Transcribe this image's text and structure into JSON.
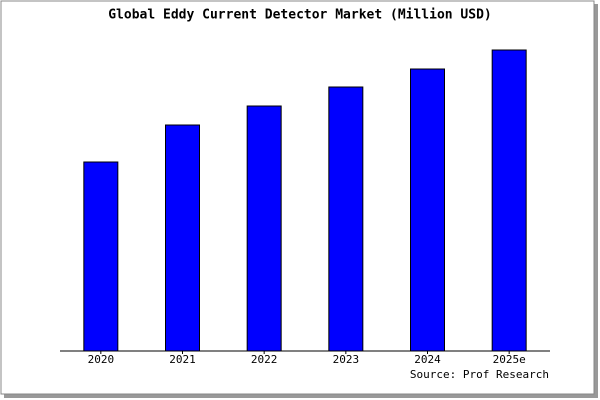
{
  "chart_data": {
    "type": "bar",
    "title": "Global Eddy Current Detector Market (Million USD)",
    "categories": [
      "2020",
      "2021",
      "2022",
      "2023",
      "2024",
      "2025e"
    ],
    "values": [
      189,
      226,
      245,
      264,
      282,
      301
    ],
    "color": "#0000ff",
    "ylim": [
      0,
      302
    ],
    "source": "Source: Prof Research"
  }
}
